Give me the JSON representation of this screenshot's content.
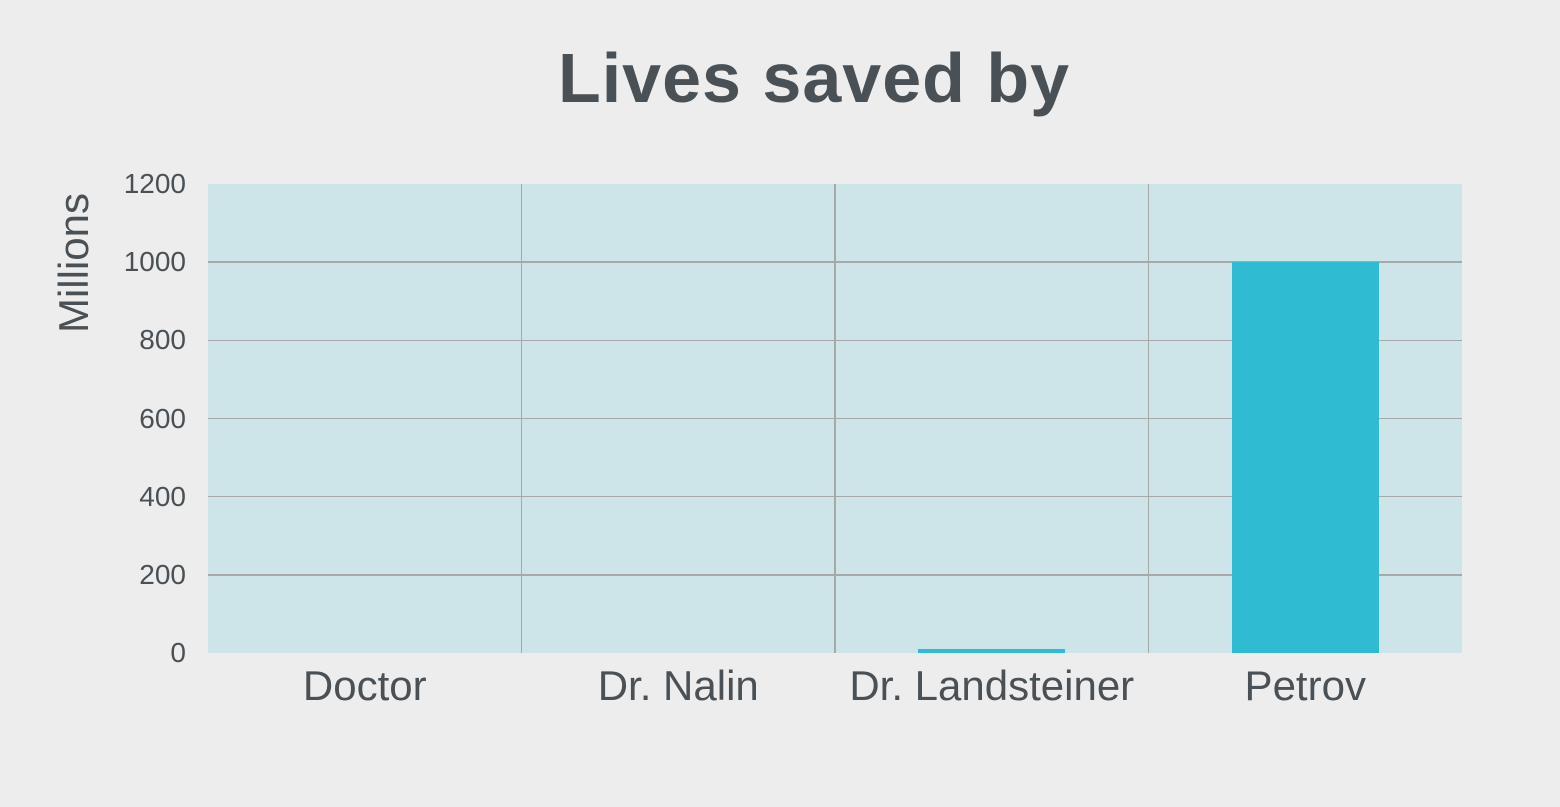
{
  "chart_data": {
    "type": "bar",
    "title": "Lives saved by",
    "ylabel": "Millions",
    "xlabel": "",
    "categories": [
      "Doctor",
      "Dr. Nalin",
      "Dr. Landsteiner",
      "Petrov"
    ],
    "values": [
      0,
      0,
      10,
      1000
    ],
    "ylim": [
      0,
      1200
    ],
    "yticks": [
      0,
      200,
      400,
      600,
      800,
      1000,
      1200
    ],
    "grid": "horizontal gridlines at each y-tick plus vertical category separators",
    "legend": "none",
    "colors": {
      "page_bg": "#ededed",
      "plot_bg": "#cde4e9",
      "bar": "#2fbcd2",
      "gridline": "#a6a8aa",
      "text": "#4a5156"
    }
  }
}
